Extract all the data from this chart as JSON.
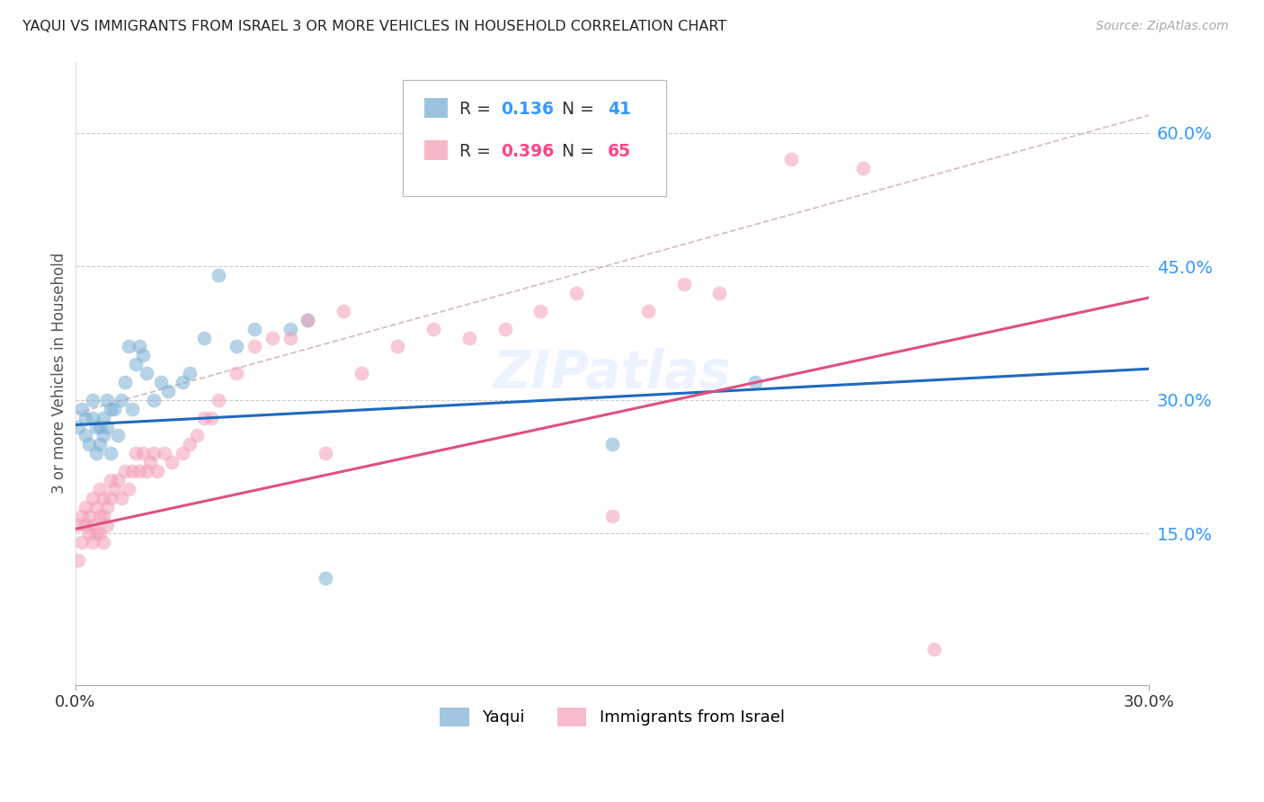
{
  "title": "YAQUI VS IMMIGRANTS FROM ISRAEL 3 OR MORE VEHICLES IN HOUSEHOLD CORRELATION CHART",
  "source": "Source: ZipAtlas.com",
  "ylabel": "3 or more Vehicles in Household",
  "ytick_values": [
    0.15,
    0.3,
    0.45,
    0.6
  ],
  "xlim": [
    0.0,
    0.3
  ],
  "ylim": [
    -0.02,
    0.68
  ],
  "legend1_label": "Yaqui",
  "legend2_label": "Immigrants from Israel",
  "R1": 0.136,
  "N1": 41,
  "R2": 0.396,
  "N2": 65,
  "blue_color": "#7bafd4",
  "pink_color": "#f4a0b5",
  "line_blue": "#1f6abf",
  "line_pink": "#e05080",
  "dashed_color": "#ccaaaa",
  "blue_scatter_x": [
    0.001,
    0.002,
    0.003,
    0.003,
    0.004,
    0.005,
    0.005,
    0.006,
    0.006,
    0.007,
    0.007,
    0.008,
    0.008,
    0.009,
    0.009,
    0.01,
    0.01,
    0.011,
    0.012,
    0.013,
    0.014,
    0.015,
    0.016,
    0.017,
    0.018,
    0.019,
    0.02,
    0.022,
    0.024,
    0.026,
    0.03,
    0.032,
    0.036,
    0.04,
    0.045,
    0.05,
    0.06,
    0.065,
    0.07,
    0.15,
    0.19
  ],
  "blue_scatter_y": [
    0.27,
    0.29,
    0.26,
    0.28,
    0.25,
    0.28,
    0.3,
    0.27,
    0.24,
    0.25,
    0.27,
    0.26,
    0.28,
    0.27,
    0.3,
    0.29,
    0.24,
    0.29,
    0.26,
    0.3,
    0.32,
    0.36,
    0.29,
    0.34,
    0.36,
    0.35,
    0.33,
    0.3,
    0.32,
    0.31,
    0.32,
    0.33,
    0.37,
    0.44,
    0.36,
    0.38,
    0.38,
    0.39,
    0.1,
    0.25,
    0.32
  ],
  "pink_scatter_x": [
    0.001,
    0.001,
    0.002,
    0.002,
    0.003,
    0.003,
    0.004,
    0.004,
    0.005,
    0.005,
    0.005,
    0.006,
    0.006,
    0.007,
    0.007,
    0.007,
    0.008,
    0.008,
    0.008,
    0.009,
    0.009,
    0.01,
    0.01,
    0.011,
    0.012,
    0.013,
    0.014,
    0.015,
    0.016,
    0.017,
    0.018,
    0.019,
    0.02,
    0.021,
    0.022,
    0.023,
    0.025,
    0.027,
    0.03,
    0.032,
    0.034,
    0.036,
    0.038,
    0.04,
    0.045,
    0.05,
    0.055,
    0.06,
    0.065,
    0.07,
    0.075,
    0.08,
    0.09,
    0.1,
    0.11,
    0.12,
    0.13,
    0.14,
    0.15,
    0.16,
    0.17,
    0.18,
    0.2,
    0.22,
    0.24
  ],
  "pink_scatter_y": [
    0.12,
    0.16,
    0.14,
    0.17,
    0.16,
    0.18,
    0.15,
    0.17,
    0.14,
    0.16,
    0.19,
    0.15,
    0.18,
    0.15,
    0.17,
    0.2,
    0.14,
    0.17,
    0.19,
    0.16,
    0.18,
    0.19,
    0.21,
    0.2,
    0.21,
    0.19,
    0.22,
    0.2,
    0.22,
    0.24,
    0.22,
    0.24,
    0.22,
    0.23,
    0.24,
    0.22,
    0.24,
    0.23,
    0.24,
    0.25,
    0.26,
    0.28,
    0.28,
    0.3,
    0.33,
    0.36,
    0.37,
    0.37,
    0.39,
    0.24,
    0.4,
    0.33,
    0.36,
    0.38,
    0.37,
    0.38,
    0.4,
    0.42,
    0.17,
    0.4,
    0.43,
    0.42,
    0.57,
    0.56,
    0.02
  ],
  "background_color": "#ffffff",
  "grid_color": "#cccccc",
  "blue_line_x0": 0.0,
  "blue_line_y0": 0.272,
  "blue_line_x1": 0.3,
  "blue_line_y1": 0.335,
  "pink_line_x0": 0.0,
  "pink_line_y0": 0.155,
  "pink_line_x1": 0.3,
  "pink_line_y1": 0.415,
  "dash_line_x0": 0.0,
  "dash_line_y0": 0.285,
  "dash_line_x1": 0.3,
  "dash_line_y1": 0.62
}
